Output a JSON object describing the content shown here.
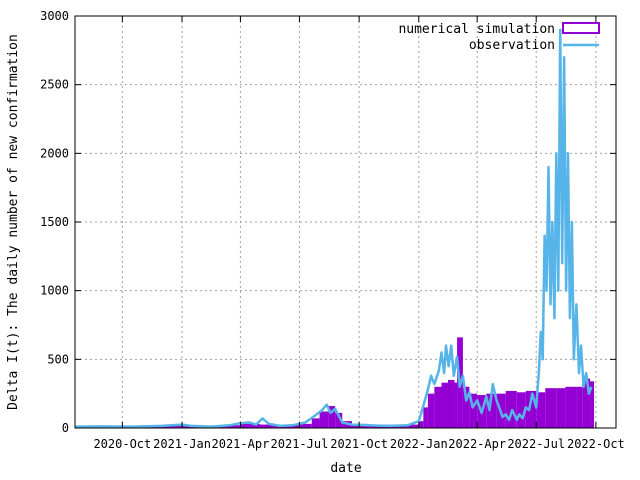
{
  "chart_data": {
    "type": "bar",
    "xlabel": "date",
    "ylabel": "Delta I(t): The daily number of new confirmation",
    "x_ticks": [
      "2020-Oct",
      "2021-Jan",
      "2021-Apr",
      "2021-Jul",
      "2021-Oct",
      "2022-Jan",
      "2022-Apr",
      "2022-Jul",
      "2022-Oct"
    ],
    "y_ticks": [
      0,
      500,
      1000,
      1500,
      2000,
      2500,
      3000
    ],
    "xlim": [
      "2020-07-20",
      "2022-11-01"
    ],
    "ylim": [
      0,
      3000
    ],
    "grid": true,
    "legend_position": "top-right",
    "colors": {
      "simulation": "#9400d3",
      "observation": "#56b4e9"
    },
    "series": [
      {
        "name": "numerical simulation",
        "style": "bars",
        "points": [
          [
            "2020-07-20",
            15
          ],
          [
            "2020-09-01",
            15
          ],
          [
            "2020-10-15",
            15
          ],
          [
            "2020-12-01",
            20
          ],
          [
            "2021-01-01",
            22
          ],
          [
            "2021-02-01",
            18
          ],
          [
            "2021-03-01",
            20
          ],
          [
            "2021-04-01",
            30
          ],
          [
            "2021-05-01",
            25
          ],
          [
            "2021-06-01",
            20
          ],
          [
            "2021-07-01",
            30
          ],
          [
            "2021-07-20",
            70
          ],
          [
            "2021-08-01",
            120
          ],
          [
            "2021-08-15",
            160
          ],
          [
            "2021-08-25",
            110
          ],
          [
            "2021-09-05",
            50
          ],
          [
            "2021-09-20",
            30
          ],
          [
            "2021-10-15",
            25
          ],
          [
            "2021-11-15",
            20
          ],
          [
            "2021-12-15",
            25
          ],
          [
            "2022-01-01",
            50
          ],
          [
            "2022-01-08",
            150
          ],
          [
            "2022-01-15",
            250
          ],
          [
            "2022-01-25",
            300
          ],
          [
            "2022-02-05",
            330
          ],
          [
            "2022-02-15",
            350
          ],
          [
            "2022-02-25",
            330
          ],
          [
            "2022-03-01",
            660
          ],
          [
            "2022-03-10",
            300
          ],
          [
            "2022-03-20",
            250
          ],
          [
            "2022-04-01",
            240
          ],
          [
            "2022-04-15",
            250
          ],
          [
            "2022-05-01",
            250
          ],
          [
            "2022-05-15",
            270
          ],
          [
            "2022-06-01",
            260
          ],
          [
            "2022-06-15",
            270
          ],
          [
            "2022-07-01",
            260
          ],
          [
            "2022-07-15",
            290
          ],
          [
            "2022-08-01",
            290
          ],
          [
            "2022-08-15",
            300
          ],
          [
            "2022-09-01",
            300
          ],
          [
            "2022-09-10",
            380
          ],
          [
            "2022-09-15",
            360
          ],
          [
            "2022-09-22",
            340
          ]
        ]
      },
      {
        "name": "observation",
        "style": "lines",
        "points": [
          [
            "2020-07-20",
            10
          ],
          [
            "2020-09-01",
            12
          ],
          [
            "2020-10-15",
            10
          ],
          [
            "2020-12-01",
            15
          ],
          [
            "2021-01-01",
            25
          ],
          [
            "2021-01-15",
            15
          ],
          [
            "2021-02-15",
            10
          ],
          [
            "2021-03-15",
            20
          ],
          [
            "2021-04-01",
            35
          ],
          [
            "2021-04-15",
            40
          ],
          [
            "2021-04-25",
            25
          ],
          [
            "2021-05-05",
            70
          ],
          [
            "2021-05-15",
            30
          ],
          [
            "2021-06-01",
            15
          ],
          [
            "2021-06-20",
            20
          ],
          [
            "2021-07-10",
            40
          ],
          [
            "2021-07-25",
            90
          ],
          [
            "2021-08-05",
            130
          ],
          [
            "2021-08-12",
            170
          ],
          [
            "2021-08-18",
            110
          ],
          [
            "2021-08-25",
            140
          ],
          [
            "2021-09-05",
            40
          ],
          [
            "2021-09-20",
            25
          ],
          [
            "2021-10-15",
            20
          ],
          [
            "2021-11-15",
            15
          ],
          [
            "2021-12-15",
            20
          ],
          [
            "2022-01-01",
            50
          ],
          [
            "2022-01-08",
            160
          ],
          [
            "2022-01-15",
            280
          ],
          [
            "2022-01-20",
            380
          ],
          [
            "2022-01-25",
            320
          ],
          [
            "2022-02-01",
            420
          ],
          [
            "2022-02-05",
            550
          ],
          [
            "2022-02-09",
            400
          ],
          [
            "2022-02-12",
            600
          ],
          [
            "2022-02-16",
            450
          ],
          [
            "2022-02-20",
            600
          ],
          [
            "2022-02-24",
            380
          ],
          [
            "2022-03-01",
            520
          ],
          [
            "2022-03-05",
            300
          ],
          [
            "2022-03-10",
            380
          ],
          [
            "2022-03-15",
            200
          ],
          [
            "2022-03-20",
            260
          ],
          [
            "2022-03-25",
            150
          ],
          [
            "2022-04-01",
            200
          ],
          [
            "2022-04-08",
            110
          ],
          [
            "2022-04-15",
            230
          ],
          [
            "2022-04-20",
            130
          ],
          [
            "2022-04-25",
            320
          ],
          [
            "2022-05-01",
            200
          ],
          [
            "2022-05-05",
            150
          ],
          [
            "2022-05-10",
            80
          ],
          [
            "2022-05-15",
            100
          ],
          [
            "2022-05-20",
            60
          ],
          [
            "2022-05-25",
            130
          ],
          [
            "2022-06-01",
            60
          ],
          [
            "2022-06-05",
            100
          ],
          [
            "2022-06-10",
            70
          ],
          [
            "2022-06-15",
            150
          ],
          [
            "2022-06-20",
            130
          ],
          [
            "2022-06-25",
            250
          ],
          [
            "2022-07-01",
            150
          ],
          [
            "2022-07-05",
            400
          ],
          [
            "2022-07-08",
            700
          ],
          [
            "2022-07-11",
            500
          ],
          [
            "2022-07-14",
            1400
          ],
          [
            "2022-07-17",
            1000
          ],
          [
            "2022-07-20",
            1900
          ],
          [
            "2022-07-23",
            900
          ],
          [
            "2022-07-26",
            1500
          ],
          [
            "2022-07-29",
            800
          ],
          [
            "2022-08-01",
            2000
          ],
          [
            "2022-08-04",
            1000
          ],
          [
            "2022-08-07",
            2900
          ],
          [
            "2022-08-10",
            1200
          ],
          [
            "2022-08-13",
            2700
          ],
          [
            "2022-08-16",
            1000
          ],
          [
            "2022-08-19",
            2000
          ],
          [
            "2022-08-22",
            800
          ],
          [
            "2022-08-25",
            1500
          ],
          [
            "2022-08-28",
            500
          ],
          [
            "2022-09-01",
            900
          ],
          [
            "2022-09-05",
            400
          ],
          [
            "2022-09-08",
            600
          ],
          [
            "2022-09-12",
            300
          ],
          [
            "2022-09-16",
            400
          ],
          [
            "2022-09-20",
            250
          ],
          [
            "2022-09-24",
            300
          ]
        ]
      }
    ]
  }
}
